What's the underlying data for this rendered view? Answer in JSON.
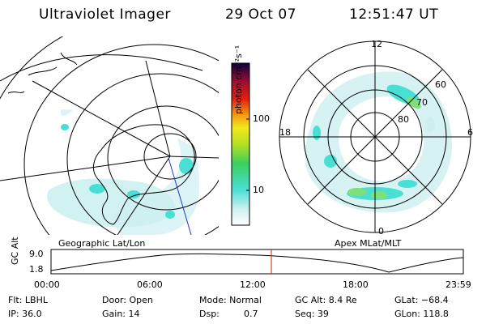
{
  "header": {
    "instrument": "Ultraviolet Imager",
    "date": "29 Oct 07",
    "time": "12:51:47 UT"
  },
  "colorbar": {
    "label": "photon cm⁻²s⁻¹",
    "ticks": [
      "100",
      "10"
    ]
  },
  "left_panel": {
    "caption": "Geographic Lat/Lon"
  },
  "right_panel": {
    "caption": "Apex MLat/MLT",
    "mlt_labels": {
      "top": "12",
      "left": "18",
      "right": "6",
      "bottom": "0"
    },
    "lat_labels": [
      "60",
      "70",
      "80"
    ]
  },
  "altitude_plot": {
    "ylabel": "GC Alt",
    "y_ticks": [
      "9.0",
      "1.8"
    ],
    "x_ticks": [
      "00:00",
      "06:00",
      "12:00",
      "18:00",
      "23:59"
    ]
  },
  "info": {
    "row1": {
      "flt": "Flt: LBHL",
      "door": "Door: Open",
      "mode": "Mode: Normal",
      "gc_alt": "GC Alt: 8.4 Re",
      "glat": "GLat: −68.4"
    },
    "row2": {
      "ip": "IP: 36.0",
      "gain": "Gain: 14",
      "dsp_label": "Dsp:",
      "dsp_value": "0.7",
      "seq": "Seq: 39",
      "glon": "GLon: 118.8"
    }
  },
  "colors": {
    "aurora_light": "#cfeff0",
    "aurora_mid": "#48e0d4",
    "aurora_bright": "#7fe07a",
    "marker_line": "#cc2200",
    "meridian": "#2233cc"
  }
}
